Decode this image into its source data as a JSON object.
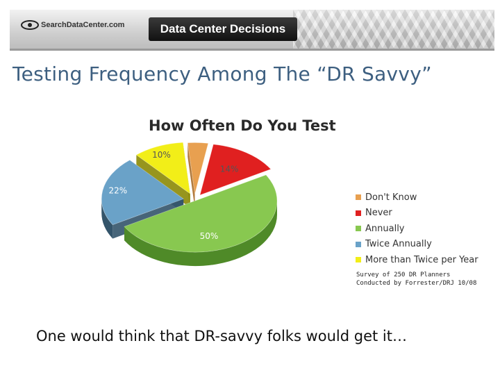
{
  "header": {
    "site_logo": "SearchDataCenter.com",
    "product_badge": "Data Center Decisions"
  },
  "slide": {
    "title": "Testing Frequency Among The “DR Savvy”",
    "caption": "One would think that DR-savvy folks would get it…",
    "survey_note": [
      "Survey of 250 DR Planners",
      "Conducted by Forrester/DRJ 10/08"
    ]
  },
  "chart_data": {
    "type": "pie",
    "title": "How Often Do You Test",
    "categories": [
      "Don't Know",
      "Never",
      "Annually",
      "Twice Annually",
      "More than Twice per Year"
    ],
    "values": [
      4,
      14,
      50,
      22,
      10
    ],
    "data_labels": [
      "4%",
      "14%",
      "50%",
      "22%",
      "10%"
    ],
    "colors": [
      "#e8a050",
      "#e02020",
      "#88c850",
      "#6aa2c8",
      "#f2ee18"
    ],
    "side_colors": [
      "#a86c28",
      "#8a1010",
      "#4f8a28",
      "#33546a",
      "#8c8a06"
    ],
    "label_colors": [
      "#555555",
      "#555555",
      "#ffffff",
      "#ffffff",
      "#555555"
    ],
    "legend_position": "right",
    "style": "3d-exploded"
  }
}
